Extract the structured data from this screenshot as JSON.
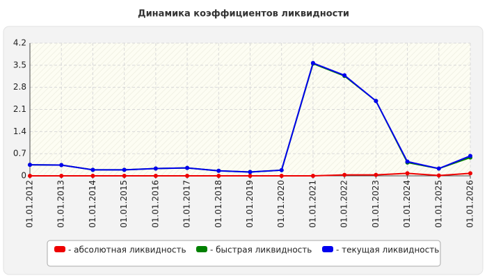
{
  "chart_data": {
    "type": "line",
    "title": "Динамика коэффициентов ликвидности",
    "categories": [
      "01.01.2012",
      "01.01.2013",
      "01.01.2014",
      "01.01.2015",
      "01.01.2016",
      "01.01.2017",
      "01.01.2018",
      "01.01.2019",
      "01.01.2020",
      "01.01.2021",
      "01.01.2022",
      "01.01.2023",
      "01.01.2024",
      "01.01.2025",
      "01.01.2026"
    ],
    "series": [
      {
        "name": "- абсолютная ликвидность",
        "color": "#ee0000",
        "values": [
          0,
          0,
          0,
          0,
          0,
          0,
          0,
          0,
          0,
          0,
          0.03,
          0.03,
          0.08,
          0.01,
          0.08
        ]
      },
      {
        "name": "- быстрая ликвидность",
        "color": "#008000",
        "values": [
          0.35,
          0.34,
          0.19,
          0.19,
          0.23,
          0.25,
          0.16,
          0.12,
          0.18,
          3.55,
          3.16,
          2.37,
          0.42,
          0.23,
          0.58
        ]
      },
      {
        "name": "- текущая ликвидность",
        "color": "#0000ee",
        "values": [
          0.35,
          0.34,
          0.19,
          0.19,
          0.23,
          0.25,
          0.16,
          0.12,
          0.18,
          3.57,
          3.18,
          2.37,
          0.45,
          0.23,
          0.63
        ]
      }
    ],
    "ylim": [
      0,
      4.2
    ],
    "yticks": [
      0,
      0.7,
      1.4,
      2.1,
      2.8,
      3.5,
      4.2
    ],
    "grid": true
  }
}
